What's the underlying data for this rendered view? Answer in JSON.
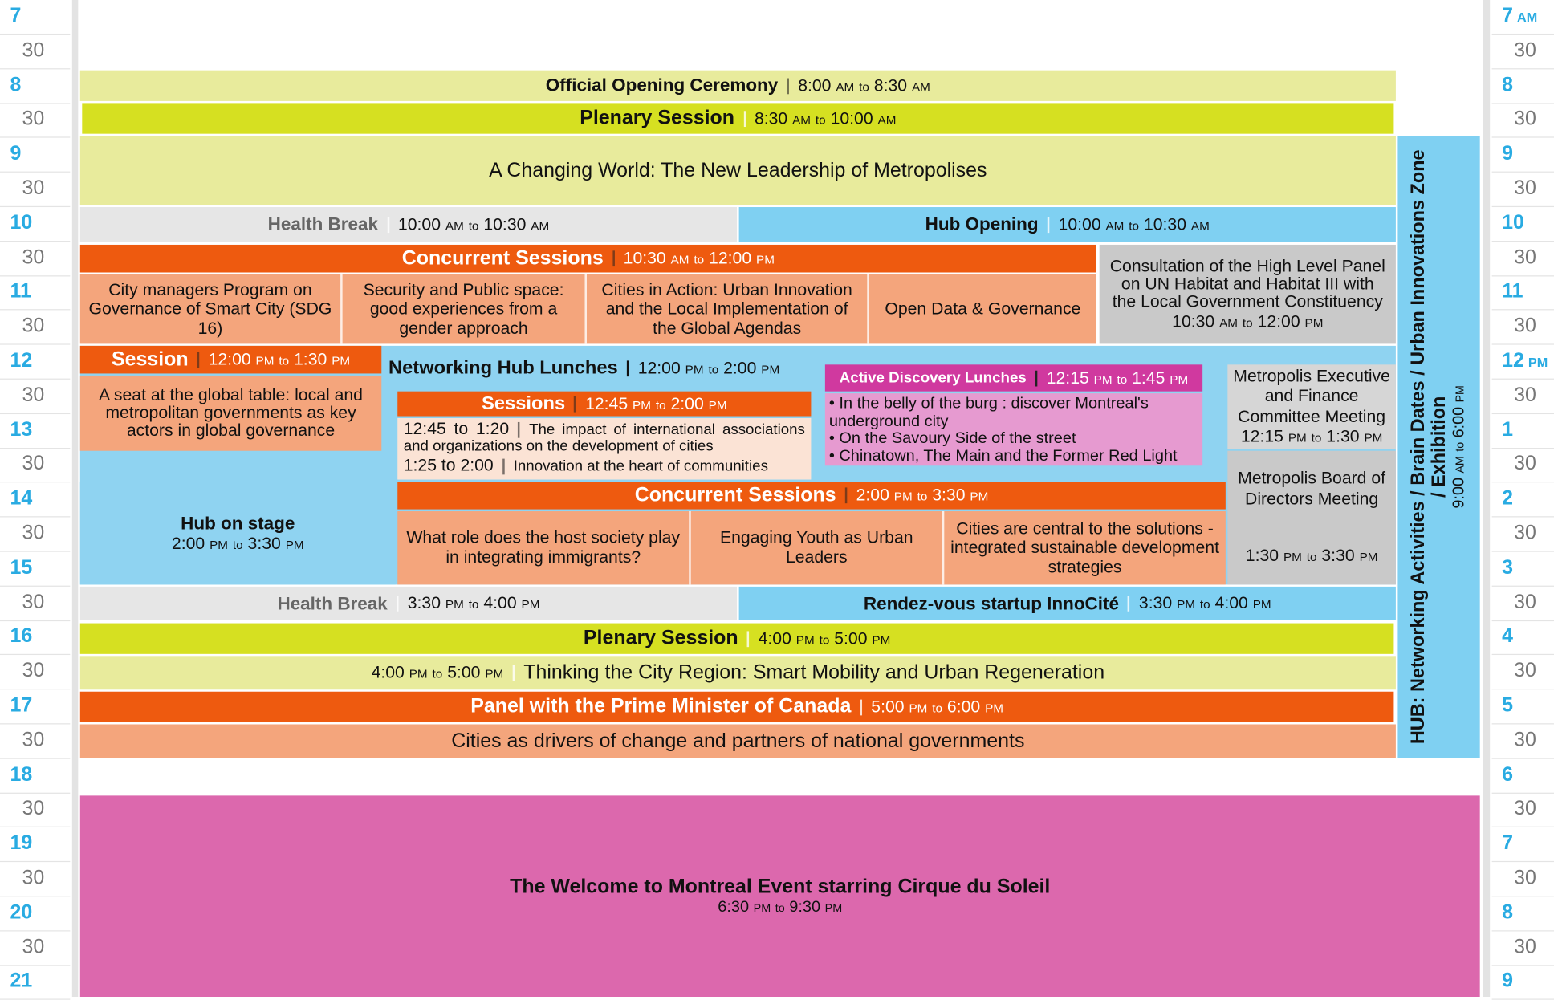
{
  "time_labels_left": [
    "7",
    "30",
    "8",
    "30",
    "9",
    "30",
    "10",
    "30",
    "11",
    "30",
    "12",
    "30",
    "13",
    "30",
    "14",
    "30",
    "15",
    "30",
    "16",
    "30",
    "17",
    "30",
    "18",
    "30",
    "19",
    "30",
    "20",
    "30",
    "21"
  ],
  "time_labels_right": [
    {
      "text": "7",
      "suffix": "AM"
    },
    "30",
    "8",
    "30",
    "9",
    "30",
    "10",
    "30",
    "11",
    "30",
    {
      "text": "12",
      "suffix": "PM"
    },
    "30",
    "1",
    "30",
    "2",
    "30",
    "3",
    "30",
    "4",
    "30",
    "5",
    "30",
    "6",
    "30",
    "7",
    "30",
    "8",
    "30",
    "9"
  ],
  "events": {
    "opening": {
      "title": "Official Opening Ceremony",
      "time": "8:00 AM to 8:30 AM"
    },
    "plenary_1": {
      "title": "Plenary Session",
      "time": "8:30 AM to 10:00 AM",
      "topic": "A Changing World: The New Leadership of Metropolises"
    },
    "health_break_1": {
      "title": "Health Break",
      "time": "10:00 AM to 10:30 AM"
    },
    "hub_opening": {
      "title": "Hub Opening",
      "time": "10:00 AM to 10:30 AM"
    },
    "concurrent_1": {
      "title": "Concurrent Sessions",
      "time": "10:30 AM to 12:00 PM",
      "sessions": [
        "City managers Program on Governance of Smart City (SDG 16)",
        "Security and Public space: good experiences from a gender approach",
        "Cities in Action: Urban Innovation and the Local Implementation of the Global Agendas",
        "Open Data & Governance"
      ]
    },
    "consultation": {
      "title": "Consultation of the High Level Panel on UN Habitat and Habitat III with the Local Government Constituency",
      "time": "10:30 AM to 12:00 PM"
    },
    "session_noon": {
      "title": "Session",
      "time": "12:00 PM to 1:30 PM",
      "topic": "A seat at the global table: local and metropolitan governments as key actors in global governance"
    },
    "networking_lunches": {
      "title": "Networking Hub Lunches",
      "time": "12:00 PM to 2:00 PM"
    },
    "sessions_1245": {
      "title": "Sessions",
      "time": "12:45 PM to 2:00 PM",
      "items": [
        {
          "time": "12:45 to 1:20",
          "title": "The impact of international associations and organizations on the development of cities"
        },
        {
          "time": "1:25 to 2:00",
          "title": "Innovation at the heart of communities"
        }
      ]
    },
    "active_lunches": {
      "title": "Active Discovery Lunches",
      "time": "12:15 PM to 1:45 PM",
      "items": [
        "In the belly of the burg : discover Montreal's underground city",
        "On the Savoury Side of the street",
        "Chinatown, The Main and the Former Red Light"
      ]
    },
    "metropolis_exec": {
      "title": "Metropolis Executive and Finance Committee Meeting",
      "time": "12:15 PM to 1:30 PM"
    },
    "hub_on_stage": {
      "title": "Hub on stage",
      "time": "2:00 PM to 3:30 PM"
    },
    "concurrent_2": {
      "title": "Concurrent Sessions",
      "time": "2:00 PM to 3:30 PM",
      "sessions": [
        "What role does the host society play in integrating immigrants?",
        "Engaging Youth as Urban Leaders",
        "Cities are central to the solutions - integrated sustainable development strategies"
      ]
    },
    "metropolis_board": {
      "title": "Metropolis Board of Directors Meeting",
      "time": "1:30 PM to 3:30 PM"
    },
    "health_break_2": {
      "title": "Health Break",
      "time": "3:30 PM to 4:00 PM"
    },
    "rendezvous": {
      "title": "Rendez-vous startup InnoCité",
      "time": "3:30 PM to 4:00 PM"
    },
    "plenary_2": {
      "title": "Plenary Session",
      "time": "4:00 PM to 5:00 PM",
      "topic": "Thinking the City Region: Smart Mobility and Urban Regeneration"
    },
    "panel": {
      "title": "Panel with the Prime Minister of Canada",
      "time": "5:00 PM to 6:00 PM",
      "topic": "Cities as drivers of change and partners of national governments"
    },
    "hub": {
      "title": "HUB: Networking Activities / Brain Dates / Urban Innovations Zone / Exhibition",
      "time": "9:00 AM to 6:00 PM"
    },
    "evening": {
      "title": "The Welcome to Montreal Event starring Cirque du Soleil",
      "time": "6:30 PM to 9:30 PM"
    }
  }
}
